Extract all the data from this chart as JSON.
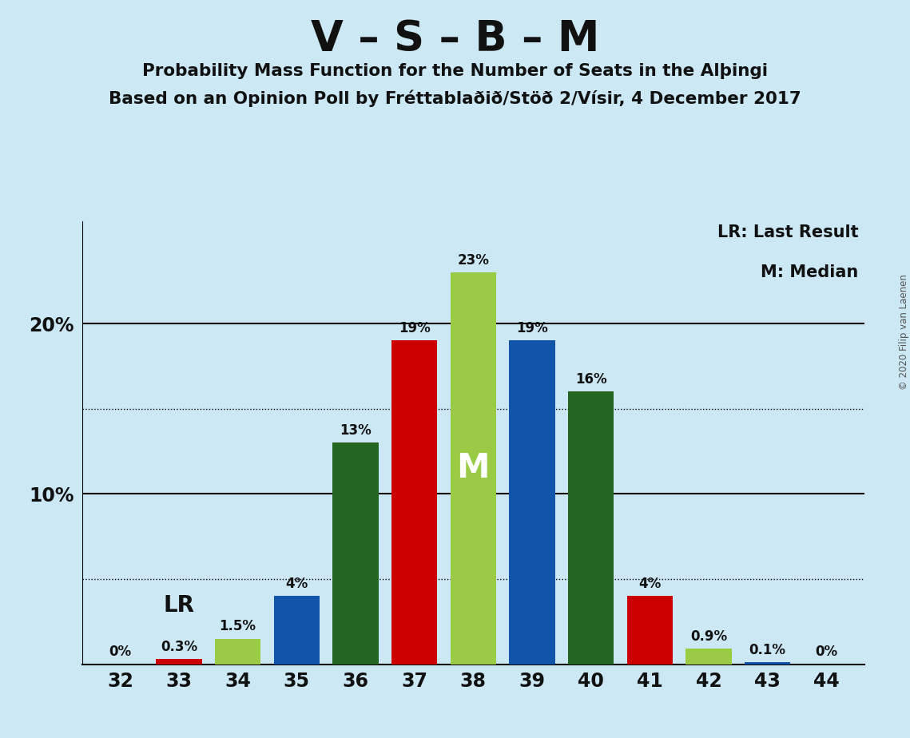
{
  "title": "V – S – B – M",
  "subtitle1": "Probability Mass Function for the Number of Seats in the Alþingi",
  "subtitle2": "Based on an Opinion Poll by Fréttablaðið/Stöð 2/Vísir, 4 December 2017",
  "copyright": "© 2020 Filip van Laenen",
  "seats": [
    32,
    33,
    34,
    35,
    36,
    37,
    38,
    39,
    40,
    41,
    42,
    43,
    44
  ],
  "values": [
    0.0,
    0.3,
    1.5,
    4.0,
    13.0,
    19.0,
    23.0,
    19.0,
    16.0,
    4.0,
    0.9,
    0.1,
    0.0
  ],
  "label_values": [
    "0%",
    "0.3%",
    "1.5%",
    "4%",
    "13%",
    "19%",
    "23%",
    "19%",
    "16%",
    "4%",
    "0.9%",
    "0.1%",
    "0%"
  ],
  "colors": [
    "#cc0000",
    "#cc0000",
    "#99cc44",
    "#1155aa",
    "#226622",
    "#cc0000",
    "#99cc44",
    "#1155aa",
    "#226622",
    "#cc0000",
    "#99cc44",
    "#1155aa",
    "#226622"
  ],
  "lr_seat": 33,
  "median_seat": 38,
  "background_color": "#cce8f4",
  "ylim": [
    0,
    26
  ],
  "solid_yticks": [
    10,
    20
  ],
  "dotted_yticks": [
    5,
    15
  ],
  "legend_lr": "LR: Last Result",
  "legend_m": "M: Median"
}
